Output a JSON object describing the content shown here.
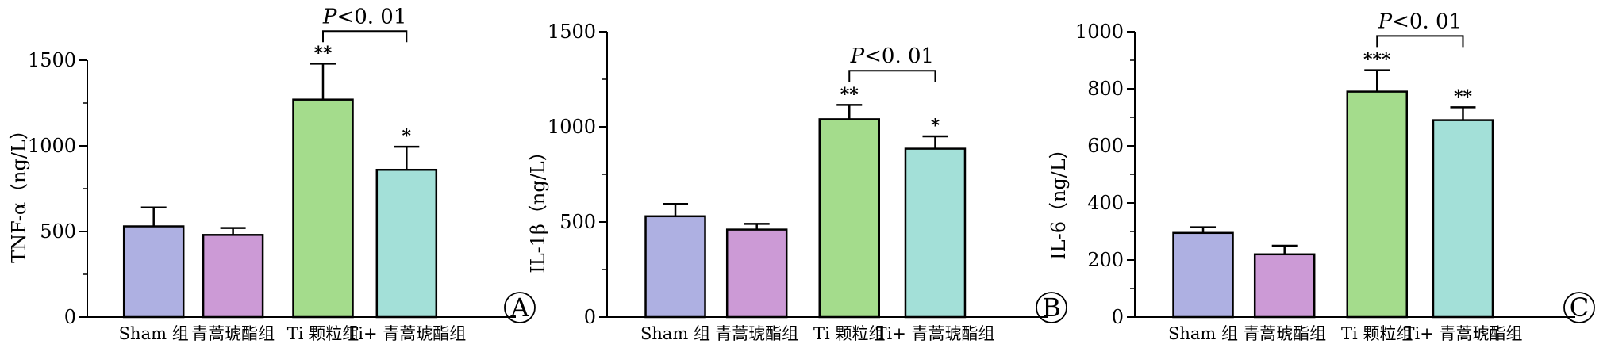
{
  "colors": [
    "#aeb0e2",
    "#cc9ad6",
    "#a4dc8c",
    "#a3e0d8"
  ],
  "chart_data": [
    {
      "type": "bar",
      "panel": "A",
      "ylabel": "TNF-α（ng/L）",
      "ylim": [
        0,
        1500
      ],
      "yticks": [
        0,
        500,
        1000,
        1500
      ],
      "ytick_labels": [
        "0",
        "500",
        "1000",
        "1500"
      ],
      "categories": [
        "Sham 组",
        "青蒿琥酯组",
        "Ti 颗粒组",
        "Ti+ 青蒿琥酯组"
      ],
      "values": [
        530,
        480,
        1270,
        860
      ],
      "errors": [
        110,
        40,
        210,
        135
      ],
      "significance": [
        "",
        "",
        "**",
        "*"
      ],
      "comparison": {
        "from": 2,
        "to": 3,
        "label_italic": "P",
        "label_rest": "<0. 01",
        "y": 1670
      }
    },
    {
      "type": "bar",
      "panel": "B",
      "ylabel": "IL-1β（ng/L）",
      "ylim": [
        0,
        1500
      ],
      "yticks": [
        0,
        500,
        1000,
        1500
      ],
      "ytick_labels": [
        "0",
        "500",
        "1000",
        "1500"
      ],
      "categories": [
        "Sham 组",
        "青蒿琥酯组",
        "Ti 颗粒组",
        "Ti+ 青蒿琥酯组"
      ],
      "values": [
        530,
        460,
        1040,
        885
      ],
      "errors": [
        65,
        30,
        75,
        65
      ],
      "significance": [
        "",
        "",
        "**",
        "*"
      ],
      "comparison": {
        "from": 2,
        "to": 3,
        "label_italic": "P",
        "label_rest": "<0. 01",
        "y": 1295
      }
    },
    {
      "type": "bar",
      "panel": "C",
      "ylabel": "IL-6（ng/L）",
      "ylim": [
        0,
        1000
      ],
      "yticks": [
        0,
        200,
        400,
        600,
        800,
        1000
      ],
      "ytick_labels": [
        "0",
        "200",
        "400",
        "600",
        "800",
        "1000"
      ],
      "categories": [
        "Sham 组",
        "青蒿琥酯组",
        "Ti 颗粒组",
        "Ti+ 青蒿琥酯组"
      ],
      "values": [
        295,
        220,
        790,
        690
      ],
      "errors": [
        20,
        30,
        75,
        45
      ],
      "significance": [
        "",
        "",
        "***",
        "**"
      ],
      "comparison": {
        "from": 2,
        "to": 3,
        "label_italic": "P",
        "label_rest": "<0. 01",
        "y": 985
      }
    }
  ]
}
